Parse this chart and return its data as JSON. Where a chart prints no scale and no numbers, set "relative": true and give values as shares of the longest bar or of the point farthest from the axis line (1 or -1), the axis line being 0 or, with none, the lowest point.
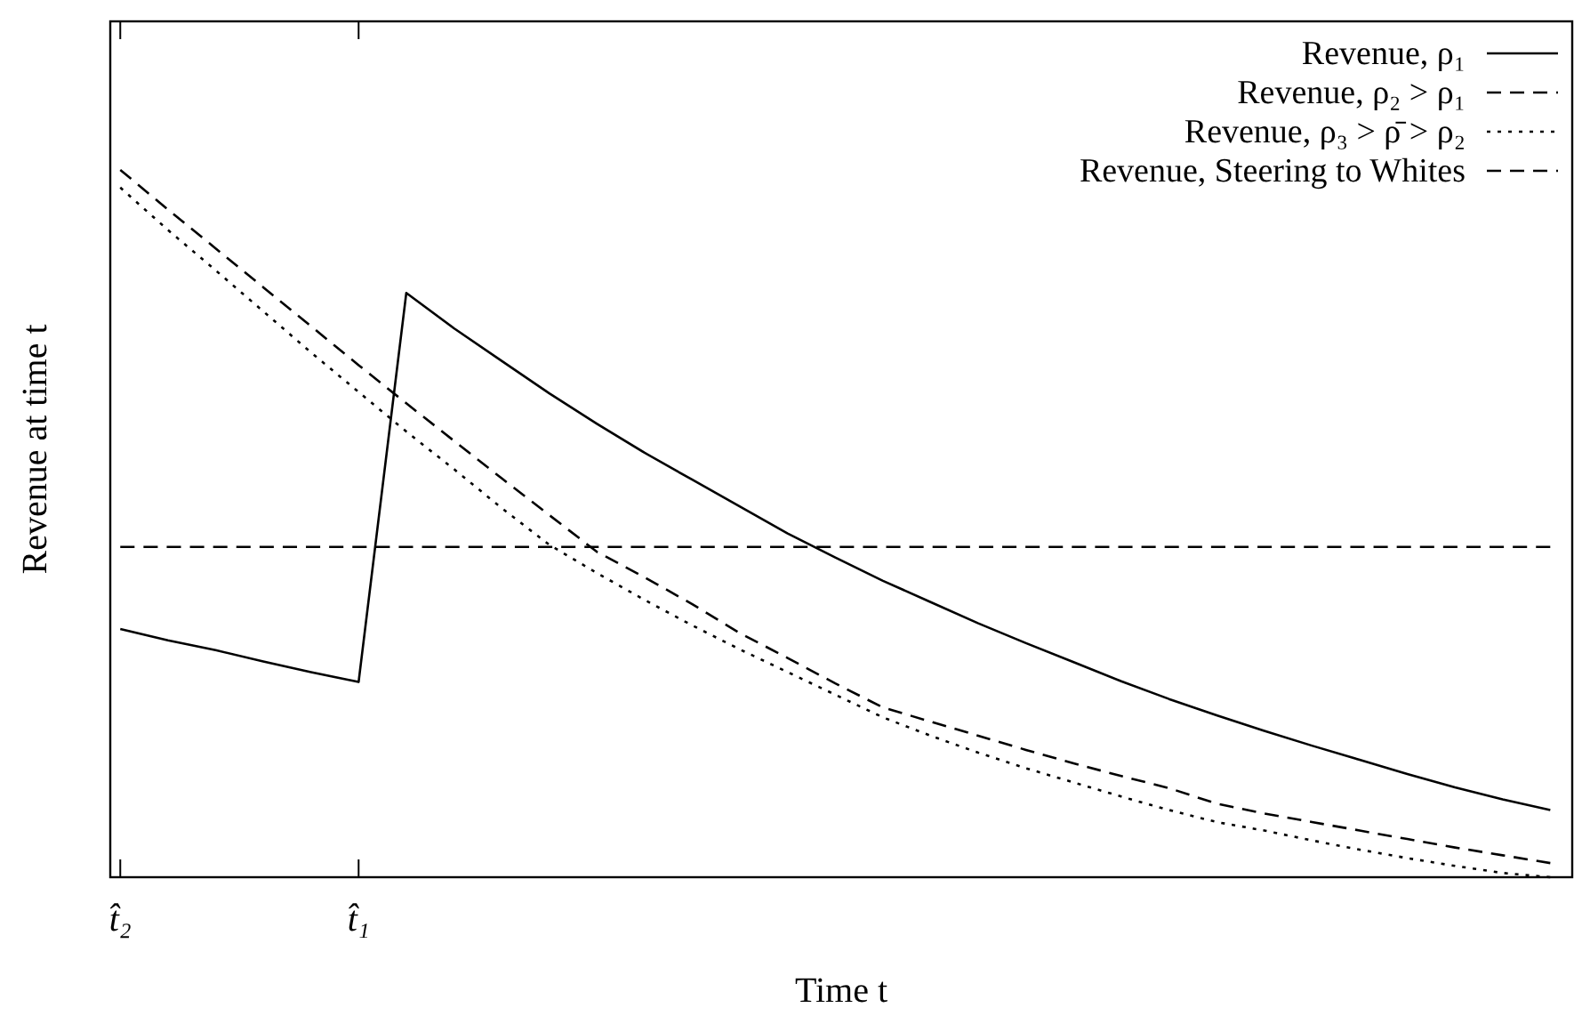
{
  "chart_data": {
    "type": "line",
    "relative": true,
    "xlabel": "Time t",
    "ylabel": "Revenue at time t",
    "categories": [
      "t̂₂",
      null,
      null,
      null,
      null,
      "t̂₁",
      null,
      null,
      null,
      null,
      null,
      null,
      null,
      null,
      null,
      null,
      null,
      null,
      null,
      null,
      null,
      null,
      null,
      null,
      null,
      null,
      null,
      null,
      null,
      null,
      null
    ],
    "legend": "top right",
    "grid": false,
    "marker": "none",
    "series": [
      {
        "name": "Revenue, ρ₁",
        "color": "#000000",
        "line_style": "solid",
        "values": [
          0.351,
          0.335,
          0.321,
          0.305,
          0.29,
          0.276,
          0.826,
          0.776,
          0.73,
          0.684,
          0.641,
          0.6,
          0.562,
          0.524,
          0.486,
          0.452,
          0.419,
          0.389,
          0.359,
          0.331,
          0.304,
          0.277,
          0.252,
          0.229,
          0.207,
          0.186,
          0.166,
          0.146,
          0.127,
          0.11,
          0.095
        ]
      },
      {
        "name": "Revenue, ρ₂ > ρ₁",
        "color": "#000000",
        "line_style": "dashed",
        "values": [
          1,
          0.944,
          0.889,
          0.834,
          0.779,
          0.724,
          0.67,
          0.617,
          0.564,
          0.512,
          0.46,
          0.424,
          0.386,
          0.345,
          0.31,
          0.274,
          0.24,
          0.22,
          0.2,
          0.18,
          0.161,
          0.143,
          0.126,
          0.104,
          0.09,
          0.078,
          0.066,
          0.054,
          0.042,
          0.031,
          0.02
        ]
      },
      {
        "name": "Revenue, ρ₃ > ρ̄ > ρ₂",
        "color": "#000000",
        "line_style": "dotted",
        "values": [
          0.975,
          0.915,
          0.858,
          0.8,
          0.742,
          0.686,
          0.63,
          0.577,
          0.522,
          0.47,
          0.43,
          0.392,
          0.356,
          0.322,
          0.29,
          0.258,
          0.226,
          0.2,
          0.176,
          0.154,
          0.134,
          0.114,
          0.095,
          0.078,
          0.066,
          0.052,
          0.039,
          0.027,
          0.016,
          0.006,
          0
        ]
      },
      {
        "name": "Revenue, Steering to Whites",
        "color": "#000000",
        "line_style": "dashed",
        "values": [
          0.467,
          0.467,
          0.467,
          0.467,
          0.467,
          0.467,
          0.467,
          0.467,
          0.467,
          0.467,
          0.467,
          0.467,
          0.467,
          0.467,
          0.467,
          0.467,
          0.467,
          0.467,
          0.467,
          0.467,
          0.467,
          0.467,
          0.467,
          0.467,
          0.467,
          0.467,
          0.467,
          0.467,
          0.467,
          0.467,
          0.467
        ]
      }
    ]
  }
}
